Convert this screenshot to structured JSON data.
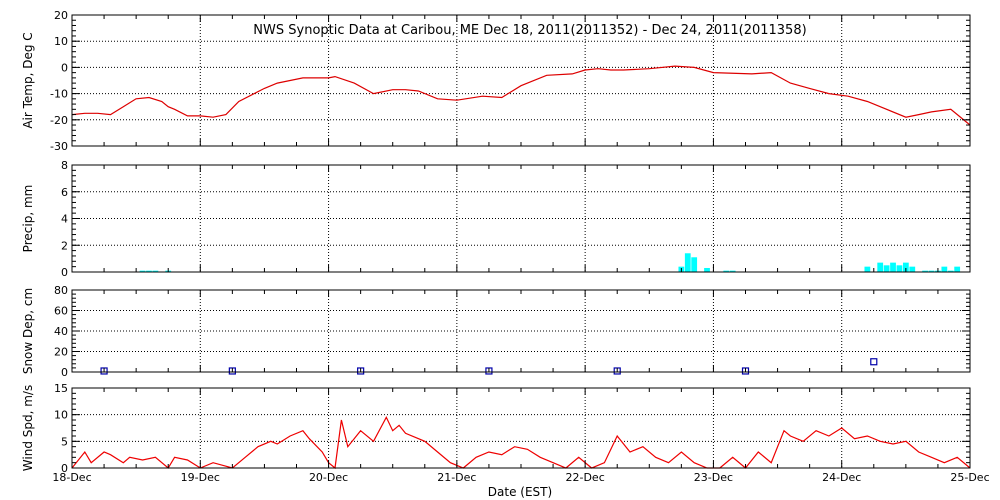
{
  "title": "NWS Synoptic Data at Caribou, ME   Dec 18, 2011(2011352) - Dec 24, 2011(2011358)",
  "xlabel": "Date (EST)",
  "x_ticks": [
    "18-Dec",
    "19-Dec",
    "20-Dec",
    "21-Dec",
    "22-Dec",
    "23-Dec",
    "24-Dec",
    "25-Dec"
  ],
  "colors": {
    "temperature": "#dd0000",
    "precip": "#00ffff",
    "snow": "#0000aa",
    "wind": "#ee0000"
  },
  "chart_data": [
    {
      "type": "line",
      "ylabel": "Air Temp, Deg C",
      "ylim": [
        -30,
        20
      ],
      "yticks": [
        -30,
        -20,
        -10,
        0,
        10,
        20
      ],
      "x_units": "days since Dec 18, 2011",
      "x": [
        0,
        0.1,
        0.2,
        0.3,
        0.4,
        0.5,
        0.6,
        0.7,
        0.75,
        0.8,
        0.9,
        1.0,
        1.1,
        1.2,
        1.3,
        1.5,
        1.6,
        1.8,
        2.0,
        2.05,
        2.2,
        2.35,
        2.5,
        2.6,
        2.7,
        2.85,
        3.0,
        3.2,
        3.35,
        3.5,
        3.7,
        3.9,
        4.0,
        4.1,
        4.2,
        4.3,
        4.5,
        4.7,
        4.85,
        5.0,
        5.3,
        5.45,
        5.6,
        5.75,
        5.9,
        6.05,
        6.2,
        6.3,
        6.5,
        6.6,
        6.7,
        6.85,
        7.0
      ],
      "y": [
        -18,
        -17.5,
        -17.5,
        -18,
        -15,
        -12,
        -11.5,
        -13,
        -15,
        -16,
        -18.5,
        -18.5,
        -19,
        -18,
        -13,
        -8,
        -6,
        -4,
        -4,
        -3.5,
        -6,
        -10,
        -8.5,
        -8.5,
        -9,
        -12,
        -12.5,
        -11,
        -11.5,
        -7,
        -3,
        -2.5,
        -1,
        -0.5,
        -1,
        -1,
        -0.5,
        0.5,
        0,
        -2,
        -2.5,
        -2,
        -6,
        -8,
        -10,
        -11,
        -13,
        -15,
        -19,
        -18,
        -17,
        -16,
        -22
      ]
    },
    {
      "type": "bar",
      "ylabel": "Precip, mm",
      "ylim": [
        0,
        8
      ],
      "yticks": [
        0,
        2,
        4,
        6,
        8
      ],
      "x_units": "days since Dec 18, 2011",
      "x": [
        0.55,
        0.6,
        0.65,
        0.75,
        4.75,
        4.8,
        4.85,
        4.95,
        5.1,
        5.15,
        6.2,
        6.3,
        6.35,
        6.4,
        6.45,
        6.5,
        6.55,
        6.65,
        6.7,
        6.75,
        6.8,
        6.85,
        6.9
      ],
      "values": [
        0.1,
        0.1,
        0.1,
        0.1,
        0.4,
        1.4,
        1.1,
        0.3,
        0.1,
        0.1,
        0.4,
        0.7,
        0.5,
        0.7,
        0.5,
        0.7,
        0.4,
        0.1,
        0.1,
        0.1,
        0.4,
        0.1,
        0.4
      ]
    },
    {
      "type": "scatter",
      "ylabel": "Snow Dep, cm",
      "ylim": [
        0,
        80
      ],
      "yticks": [
        0,
        20,
        40,
        60,
        80
      ],
      "x_units": "days since Dec 18, 2011",
      "x": [
        0.25,
        1.25,
        2.25,
        3.25,
        4.25,
        5.25,
        6.25
      ],
      "y": [
        1,
        1,
        1,
        1,
        1,
        1,
        10
      ]
    },
    {
      "type": "line",
      "ylabel": "Wind Spd, m/s",
      "ylim": [
        0,
        15
      ],
      "yticks": [
        0,
        5,
        10,
        15
      ],
      "x_units": "days since Dec 18, 2011",
      "x": [
        0,
        0.1,
        0.15,
        0.25,
        0.3,
        0.4,
        0.45,
        0.55,
        0.65,
        0.75,
        0.8,
        0.9,
        1.0,
        1.1,
        1.25,
        1.35,
        1.45,
        1.55,
        1.6,
        1.7,
        1.8,
        1.85,
        1.95,
        2.0,
        2.05,
        2.1,
        2.15,
        2.25,
        2.35,
        2.45,
        2.5,
        2.55,
        2.6,
        2.75,
        2.85,
        2.95,
        3.05,
        3.15,
        3.25,
        3.35,
        3.45,
        3.55,
        3.65,
        3.75,
        3.85,
        3.95,
        4.05,
        4.15,
        4.25,
        4.35,
        4.45,
        4.55,
        4.65,
        4.75,
        4.85,
        4.95,
        5.05,
        5.15,
        5.25,
        5.35,
        5.45,
        5.55,
        5.6,
        5.7,
        5.8,
        5.9,
        6.0,
        6.1,
        6.2,
        6.3,
        6.4,
        6.5,
        6.6,
        6.7,
        6.8,
        6.9,
        7.0
      ],
      "y": [
        0,
        3,
        1,
        3,
        2.5,
        1,
        2,
        1.5,
        2,
        0,
        2,
        1.5,
        0,
        1,
        0,
        2,
        4,
        5,
        4.5,
        6,
        7,
        5.5,
        3,
        1,
        0,
        9,
        4,
        7,
        5,
        9.5,
        7,
        8,
        6.5,
        5,
        3,
        1,
        0,
        2,
        3,
        2.5,
        4,
        3.5,
        2,
        1,
        0,
        2,
        0,
        1,
        6,
        3,
        4,
        2,
        1,
        3,
        1,
        0,
        0,
        2,
        0,
        3,
        1,
        7,
        6,
        5,
        7,
        6,
        7.5,
        5.5,
        6,
        5,
        4.5,
        5,
        3,
        2,
        1,
        2,
        0
      ]
    }
  ]
}
